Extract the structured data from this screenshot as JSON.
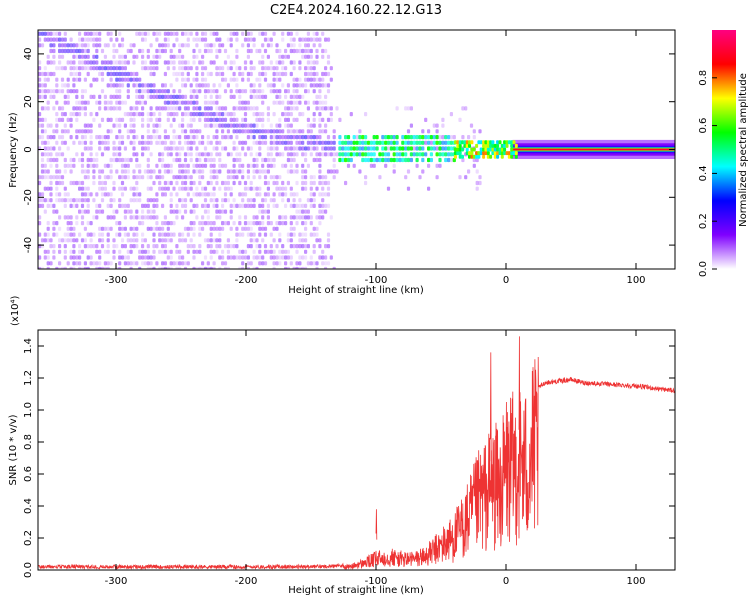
{
  "title": "C2E4.2024.160.22.12.G13",
  "chart_data": [
    {
      "type": "heatmap",
      "title": "C2E4.2024.160.22.12.G13",
      "xlabel": "Height of straight line (km)",
      "ylabel": "Frequency (Hz)",
      "xlim": [
        -360,
        130
      ],
      "ylim": [
        -50,
        50
      ],
      "xticks": [
        -300,
        -200,
        -100,
        0,
        100
      ],
      "yticks": [
        -40,
        -20,
        0,
        20,
        40
      ],
      "colorbar": {
        "label": "Normalized spectral amplitude",
        "range": [
          0.0,
          1.0
        ],
        "ticks": [
          "0.0",
          "0.2",
          "0.4",
          "0.6",
          "0.8"
        ],
        "colormap": [
          "#ffffff",
          "#7f00ff",
          "#0000ff",
          "#00ffff",
          "#00ff00",
          "#ffff00",
          "#ff0000",
          "#ff0080"
        ]
      },
      "ridges": [
        {
          "name": "descending",
          "points": [
            [
              -360,
              48
            ],
            [
              -320,
              38
            ],
            [
              -280,
              26
            ],
            [
              -240,
              17
            ],
            [
              -200,
              8
            ],
            [
              -160,
              3
            ],
            [
              -120,
              1
            ],
            [
              -80,
              0
            ],
            [
              -40,
              0
            ]
          ]
        },
        {
          "name": "carrier",
          "points": [
            [
              -40,
              0
            ],
            [
              0,
              0
            ],
            [
              130,
              0
            ]
          ]
        }
      ],
      "noise_extent_x": [
        -360,
        -140
      ]
    },
    {
      "type": "line",
      "xlabel": "Height of straight line (km)",
      "ylabel": "SNR (10 * v/v)",
      "y_multiplier": "(x10⁴)",
      "xlim": [
        -360,
        130
      ],
      "ylim": [
        0.0,
        1.5
      ],
      "xticks": [
        -300,
        -200,
        -100,
        0,
        100
      ],
      "yticks": [
        "0.0",
        "0.2",
        "0.4",
        "0.6",
        "0.8",
        "1.0",
        "1.2",
        "1.4"
      ],
      "color": "#ee3333",
      "series": [
        {
          "x": [
            -360,
            -300,
            -250,
            -200,
            -150,
            -120,
            -110,
            -100,
            -90,
            -80,
            -70,
            -60,
            -50,
            -40,
            -30,
            -20,
            -15,
            -10,
            -5,
            0,
            5,
            10,
            15,
            20,
            25,
            30,
            40,
            50,
            60,
            80,
            100,
            130
          ],
          "y": [
            0.02,
            0.02,
            0.02,
            0.02,
            0.02,
            0.03,
            0.06,
            0.1,
            0.12,
            0.1,
            0.1,
            0.14,
            0.22,
            0.3,
            0.45,
            0.65,
            0.7,
            0.78,
            0.72,
            0.9,
            0.93,
            1.0,
            0.95,
            1.08,
            1.14,
            1.17,
            1.18,
            1.19,
            1.17,
            1.16,
            1.15,
            1.12
          ]
        }
      ],
      "spikes": [
        [
          -100,
          0.38
        ],
        [
          -12,
          1.36
        ],
        [
          10,
          1.46
        ],
        [
          -8,
          0.92
        ],
        [
          0,
          1.05
        ]
      ]
    }
  ]
}
